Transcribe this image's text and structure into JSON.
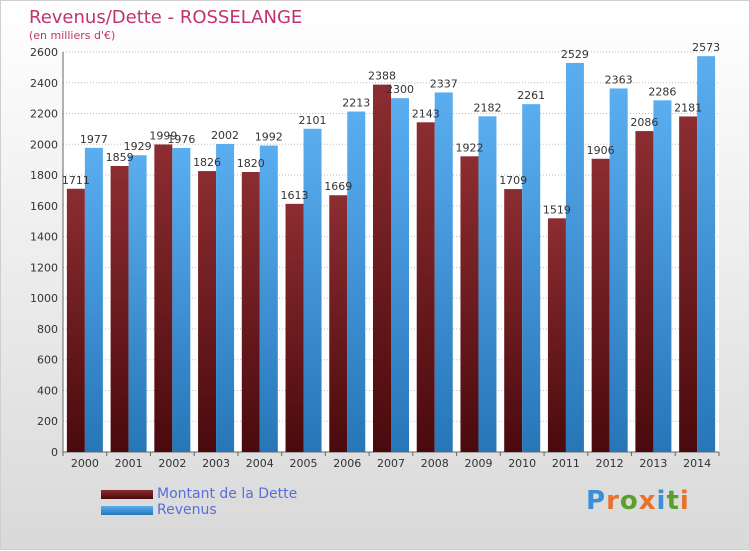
{
  "title": "Revenus/Dette - ROSSELANGE",
  "subtitle": "(en milliers d'€)",
  "logo_text": "Proxiti",
  "colors": {
    "debt": "#7a1f22",
    "revenue": "#2f8fd6",
    "title": "#c0336f",
    "legend_text": "#5a6dd8"
  },
  "chart_data": {
    "type": "bar",
    "title": "Revenus/Dette - ROSSELANGE",
    "subtitle": "(en milliers d'€)",
    "categories": [
      "2000",
      "2001",
      "2002",
      "2003",
      "2004",
      "2005",
      "2006",
      "2007",
      "2008",
      "2009",
      "2010",
      "2011",
      "2012",
      "2013",
      "2014"
    ],
    "series": [
      {
        "name": "Montant de la Dette",
        "values": [
          1711,
          1859,
          1999,
          1826,
          1820,
          1613,
          1669,
          2388,
          2143,
          1922,
          1709,
          1519,
          1906,
          2086,
          2181
        ],
        "labels": [
          "1711",
          "1859",
          "1999",
          "1826",
          "1820",
          "1613",
          "1669",
          "2388",
          "2143",
          "1922",
          "1709",
          "1519",
          "1906",
          "2086",
          "2181"
        ]
      },
      {
        "name": "Revenus",
        "values": [
          1977,
          1929,
          1976,
          2002,
          1992,
          2101,
          2213,
          2300,
          2337,
          2182,
          2261,
          2529,
          2363,
          2286,
          2573
        ],
        "labels": [
          "1977",
          "1929",
          "1976",
          "2002",
          "1992",
          "2101",
          "2213",
          "2300",
          "2337",
          "2182",
          "2261",
          "2529",
          "2363",
          "2286",
          "2573"
        ]
      }
    ],
    "ylim": [
      0,
      2600
    ],
    "yticks": [
      0,
      200,
      400,
      600,
      800,
      1000,
      1200,
      1400,
      1600,
      1800,
      2000,
      2200,
      2400,
      2600
    ],
    "grid": true,
    "legend": "bottom-left"
  }
}
